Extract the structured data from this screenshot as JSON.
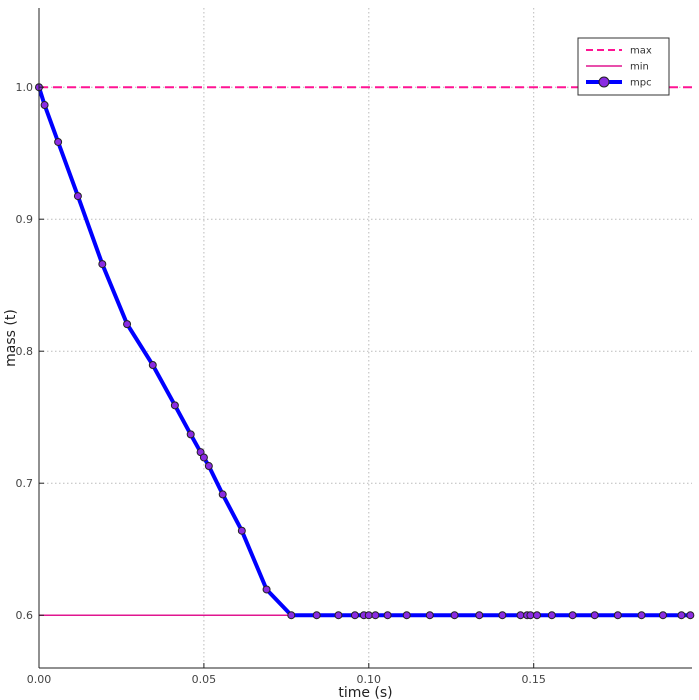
{
  "chart_data": {
    "type": "line",
    "title": "",
    "xlabel": "time (s)",
    "ylabel": "mass (t)",
    "xlim": [
      0.0,
      0.198
    ],
    "ylim": [
      0.56,
      1.06
    ],
    "xticks": [
      0.0,
      0.05,
      0.1,
      0.15
    ],
    "xtick_labels": [
      "0.00",
      "0.05",
      "0.10",
      "0.15"
    ],
    "yticks": [
      0.6,
      0.7,
      0.8,
      0.9,
      1.0
    ],
    "ytick_labels": [
      "0.6",
      "0.7",
      "0.8",
      "0.9",
      "1.0"
    ],
    "grid": true,
    "legend_position": "top-right",
    "colors": {
      "max": "#ff1493",
      "min": "#e0158f",
      "mpc_line": "#0000ff",
      "mpc_marker": "#8a2be2"
    },
    "series": [
      {
        "name": "max",
        "style": "dashed",
        "x": [
          0.0,
          0.198
        ],
        "y": [
          1.0,
          1.0
        ]
      },
      {
        "name": "min",
        "style": "solid",
        "x": [
          0.0,
          0.198
        ],
        "y": [
          0.6,
          0.6
        ]
      },
      {
        "name": "mpc",
        "style": "line-markers",
        "x": [
          0.0,
          0.0017,
          0.0058,
          0.0118,
          0.0192,
          0.0267,
          0.0345,
          0.0412,
          0.046,
          0.049,
          0.05,
          0.0515,
          0.0557,
          0.0615,
          0.069,
          0.0765,
          0.0842,
          0.0908,
          0.0958,
          0.0985,
          0.1,
          0.102,
          0.1057,
          0.1115,
          0.1185,
          0.126,
          0.1335,
          0.1405,
          0.146,
          0.148,
          0.149,
          0.151,
          0.1555,
          0.1618,
          0.1685,
          0.1755,
          0.1827,
          0.1892,
          0.1948,
          0.1975
        ],
        "y": [
          1.0,
          0.9865,
          0.9585,
          0.9175,
          0.866,
          0.8205,
          0.7895,
          0.759,
          0.737,
          0.7235,
          0.7195,
          0.713,
          0.6915,
          0.664,
          0.6195,
          0.6,
          0.6,
          0.6,
          0.6,
          0.6,
          0.6,
          0.6,
          0.6,
          0.6,
          0.6,
          0.6,
          0.6,
          0.6,
          0.6,
          0.6,
          0.6,
          0.6,
          0.6,
          0.6,
          0.6,
          0.6,
          0.6,
          0.6,
          0.6,
          0.6
        ]
      }
    ]
  }
}
